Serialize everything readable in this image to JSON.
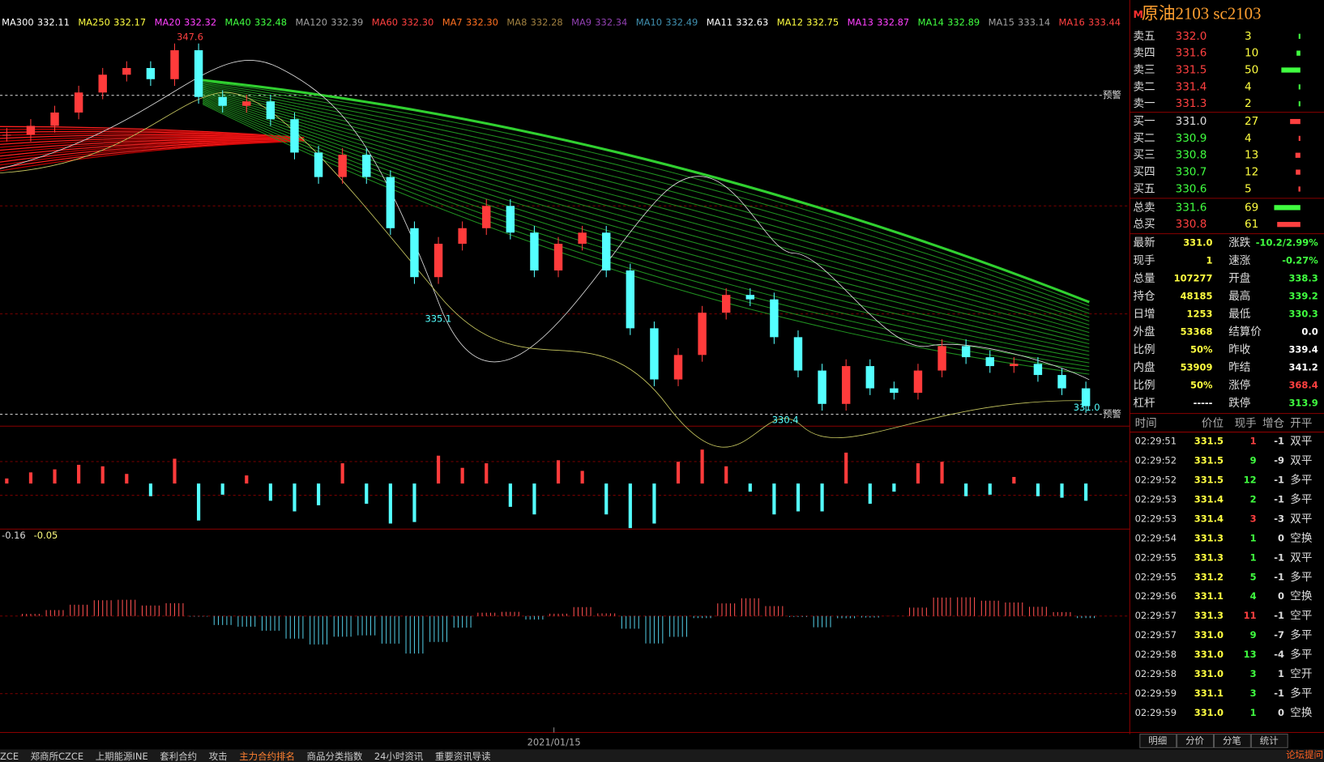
{
  "chart_data": {
    "type": "candlestick",
    "ylim": [
      330.1,
      348.5
    ],
    "values": [
      343.2,
      343.6,
      344.2,
      345.1,
      345.9,
      346.2,
      345.7,
      347.0,
      344.9,
      344.5,
      344.7,
      343.9,
      342.4,
      341.3,
      342.3,
      341.3,
      339.0,
      336.8,
      338.3,
      339.0,
      340.0,
      338.8,
      337.1,
      338.3,
      338.8,
      337.1,
      334.5,
      332.2,
      333.3,
      335.2,
      336.0,
      335.8,
      334.1,
      332.6,
      331.1,
      332.8,
      331.8,
      331.6,
      332.6,
      333.7,
      333.2,
      332.8,
      332.9,
      332.4,
      331.8,
      331.0
    ],
    "up_color": "#ff3b3b",
    "down_color": "#54ffff",
    "price_labels": [
      "347.6",
      "335.1",
      "330.4",
      "331.0"
    ],
    "alert_label": "预警",
    "x_label": "2021/01/15",
    "macd_labels": [
      "-0.16",
      "-0.05"
    ],
    "ma_legend": [
      {
        "name": "MA300",
        "value": "332.11",
        "color": "#ffffff"
      },
      {
        "name": "MA250",
        "value": "332.17",
        "color": "#ffff40"
      },
      {
        "name": "MA20",
        "value": "332.32",
        "color": "#ff40ff"
      },
      {
        "name": "MA40",
        "value": "332.48",
        "color": "#40ff40"
      },
      {
        "name": "MA120",
        "value": "332.39",
        "color": "#a0a0a0"
      },
      {
        "name": "MA60",
        "value": "332.30",
        "color": "#ff4040"
      },
      {
        "name": "MA7",
        "value": "332.30",
        "color": "#ff7020"
      },
      {
        "name": "MA8",
        "value": "332.28",
        "color": "#a08040"
      },
      {
        "name": "MA9",
        "value": "332.34",
        "color": "#9040b0"
      },
      {
        "name": "MA10",
        "value": "332.49",
        "color": "#4090b0"
      },
      {
        "name": "MA11",
        "value": "332.63",
        "color": "#ffffff"
      },
      {
        "name": "MA12",
        "value": "332.75",
        "color": "#ffff40"
      },
      {
        "name": "MA13",
        "value": "332.87",
        "color": "#ff40ff"
      },
      {
        "name": "MA14",
        "value": "332.89",
        "color": "#40ff40"
      },
      {
        "name": "MA15",
        "value": "333.14",
        "color": "#a0a0a0"
      },
      {
        "name": "MA16",
        "value": "333.44",
        "color": "#ff4040"
      }
    ]
  },
  "header": {
    "marker": "M",
    "title": "原油2103  sc2103"
  },
  "order_book": {
    "asks": [
      {
        "label": "卖五",
        "price": "332.0",
        "qty": "3"
      },
      {
        "label": "卖四",
        "price": "331.6",
        "qty": "10"
      },
      {
        "label": "卖三",
        "price": "331.5",
        "qty": "50"
      },
      {
        "label": "卖二",
        "price": "331.4",
        "qty": "4"
      },
      {
        "label": "卖一",
        "price": "331.3",
        "qty": "2"
      }
    ],
    "bids": [
      {
        "label": "买一",
        "price": "331.0",
        "qty": "27"
      },
      {
        "label": "买二",
        "price": "330.9",
        "qty": "4"
      },
      {
        "label": "买三",
        "price": "330.8",
        "qty": "13"
      },
      {
        "label": "买四",
        "price": "330.7",
        "qty": "12"
      },
      {
        "label": "买五",
        "price": "330.6",
        "qty": "5"
      }
    ],
    "totals": [
      {
        "label": "总卖",
        "price": "331.6",
        "qty": "69",
        "color": "#40ff40"
      },
      {
        "label": "总买",
        "price": "330.8",
        "qty": "61",
        "color": "#ff4040"
      }
    ]
  },
  "stats": [
    {
      "l": "最新",
      "lv": "331.0",
      "lc": "#ffff40",
      "r": "涨跌",
      "rv": "-10.2/2.99%",
      "rc": "#40ff40"
    },
    {
      "l": "现手",
      "lv": "1",
      "lc": "#ffff40",
      "r": "速涨",
      "rv": "-0.27%",
      "rc": "#40ff40"
    },
    {
      "l": "总量",
      "lv": "107277",
      "lc": "#ffff40",
      "r": "开盘",
      "rv": "338.3",
      "rc": "#40ff40"
    },
    {
      "l": "持仓",
      "lv": "48185",
      "lc": "#ffff40",
      "r": "最高",
      "rv": "339.2",
      "rc": "#40ff40"
    },
    {
      "l": "日增",
      "lv": "1253",
      "lc": "#ffff40",
      "r": "最低",
      "rv": "330.3",
      "rc": "#40ff40"
    },
    {
      "l": "外盘",
      "lv": "53368",
      "lc": "#ffff40",
      "r": "结算价",
      "rv": "0.0",
      "rc": "#ffffff"
    },
    {
      "l": "比例",
      "lv": "50%",
      "lc": "#ffff40",
      "r": "昨收",
      "rv": "339.4",
      "rc": "#ffffff"
    },
    {
      "l": "内盘",
      "lv": "53909",
      "lc": "#ffff40",
      "r": "昨结",
      "rv": "341.2",
      "rc": "#ffffff"
    },
    {
      "l": "比例",
      "lv": "50%",
      "lc": "#ffff40",
      "r": "涨停",
      "rv": "368.4",
      "rc": "#ff4040"
    },
    {
      "l": "杠杆",
      "lv": "-----",
      "lc": "#ffffff",
      "r": "跌停",
      "rv": "313.9",
      "rc": "#40ff40"
    }
  ],
  "trades": {
    "header": [
      "时间",
      "价位",
      "现手",
      "增仓",
      "开平"
    ],
    "rows": [
      {
        "time": "02:29:51",
        "price": "331.5",
        "qty": "1",
        "oi": "-1",
        "type": "双平",
        "qty_color": "#ff4040"
      },
      {
        "time": "02:29:52",
        "price": "331.5",
        "qty": "9",
        "oi": "-9",
        "type": "双平",
        "qty_color": "#40ff40"
      },
      {
        "time": "02:29:52",
        "price": "331.5",
        "qty": "12",
        "oi": "-1",
        "type": "多平",
        "qty_color": "#40ff40"
      },
      {
        "time": "02:29:53",
        "price": "331.4",
        "qty": "2",
        "oi": "-1",
        "type": "多平",
        "qty_color": "#40ff40"
      },
      {
        "time": "02:29:53",
        "price": "331.4",
        "qty": "3",
        "oi": "-3",
        "type": "双平",
        "qty_color": "#ff4040"
      },
      {
        "time": "02:29:54",
        "price": "331.3",
        "qty": "1",
        "oi": "0",
        "type": "空换",
        "qty_color": "#40ff40"
      },
      {
        "time": "02:29:55",
        "price": "331.3",
        "qty": "1",
        "oi": "-1",
        "type": "双平",
        "qty_color": "#40ff40"
      },
      {
        "time": "02:29:55",
        "price": "331.2",
        "qty": "5",
        "oi": "-1",
        "type": "多平",
        "qty_color": "#40ff40"
      },
      {
        "time": "02:29:56",
        "price": "331.1",
        "qty": "4",
        "oi": "0",
        "type": "空换",
        "qty_color": "#40ff40"
      },
      {
        "time": "02:29:57",
        "price": "331.3",
        "qty": "11",
        "oi": "-1",
        "type": "空平",
        "qty_color": "#ff4040"
      },
      {
        "time": "02:29:57",
        "price": "331.0",
        "qty": "9",
        "oi": "-7",
        "type": "多平",
        "qty_color": "#40ff40"
      },
      {
        "time": "02:29:58",
        "price": "331.0",
        "qty": "13",
        "oi": "-4",
        "type": "多平",
        "qty_color": "#40ff40"
      },
      {
        "time": "02:29:58",
        "price": "331.0",
        "qty": "3",
        "oi": "1",
        "type": "空开",
        "qty_color": "#40ff40"
      },
      {
        "time": "02:29:59",
        "price": "331.1",
        "qty": "3",
        "oi": "-1",
        "type": "多平",
        "qty_color": "#40ff40"
      },
      {
        "time": "02:29:59",
        "price": "331.0",
        "qty": "1",
        "oi": "0",
        "type": "空换",
        "qty_color": "#40ff40"
      }
    ]
  },
  "tabs": [
    "明细",
    "分价",
    "分笔",
    "统计"
  ],
  "taskbar": [
    "ZCE",
    "郑商所CZCE",
    "上期能源INE",
    "套利合约",
    "攻击",
    "主力合约排名",
    "商品分类指数",
    "24小时资讯",
    "重要资讯导读"
  ],
  "forum": "论坛提问"
}
